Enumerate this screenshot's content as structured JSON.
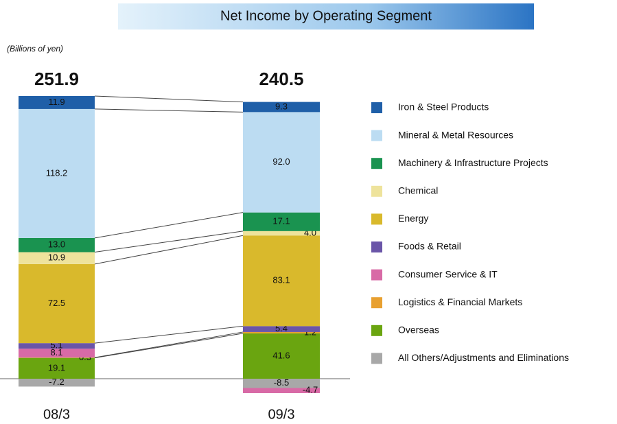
{
  "chart_data": {
    "type": "stacked_bar",
    "title": "Net Income by Operating Segment",
    "unit_label": "(Billions of yen)",
    "categories": [
      "08/3",
      "09/3"
    ],
    "totals": [
      251.9,
      240.5
    ],
    "series": [
      {
        "name": "Iron & Steel Products",
        "color": "#1f5fa8",
        "values": [
          11.9,
          9.3
        ],
        "value_labels": [
          "11.9",
          "9.3"
        ]
      },
      {
        "name": "Mineral & Metal Resources",
        "color": "#bcdcf2",
        "values": [
          118.2,
          92.0
        ],
        "value_labels": [
          "118.2",
          "92.0"
        ]
      },
      {
        "name": "Machinery & Infrastructure Projects",
        "color": "#1a9350",
        "values": [
          13.0,
          17.1
        ],
        "value_labels": [
          "13.0",
          "17.1"
        ]
      },
      {
        "name": "Chemical",
        "color": "#eee39c",
        "values": [
          10.9,
          4.0
        ],
        "value_labels": [
          "10.9",
          "4.0"
        ]
      },
      {
        "name": "Energy",
        "color": "#d9b92c",
        "values": [
          72.5,
          83.1
        ],
        "value_labels": [
          "72.5",
          "83.1"
        ]
      },
      {
        "name": "Foods & Retail",
        "color": "#6a55a8",
        "values": [
          5.1,
          5.4
        ],
        "value_labels": [
          "5.1",
          "5.4"
        ]
      },
      {
        "name": "Consumer Service & IT",
        "color": "#d86aa6",
        "values": [
          8.1,
          -4.7
        ],
        "value_labels": [
          "8.1",
          "-4.7"
        ]
      },
      {
        "name": "Logistics & Financial Markets",
        "color": "#e8a030",
        "values": [
          0.3,
          1.2
        ],
        "value_labels": [
          "0.3",
          "1.2"
        ]
      },
      {
        "name": "Overseas",
        "color": "#6aa510",
        "values": [
          19.1,
          41.6
        ],
        "value_labels": [
          "19.1",
          "41.6"
        ]
      },
      {
        "name": "All Others/Adjustments and Eliminations",
        "color": "#a8a8a8",
        "values": [
          -7.2,
          -8.5
        ],
        "value_labels": [
          "-7.2",
          "-8.5"
        ]
      }
    ]
  }
}
